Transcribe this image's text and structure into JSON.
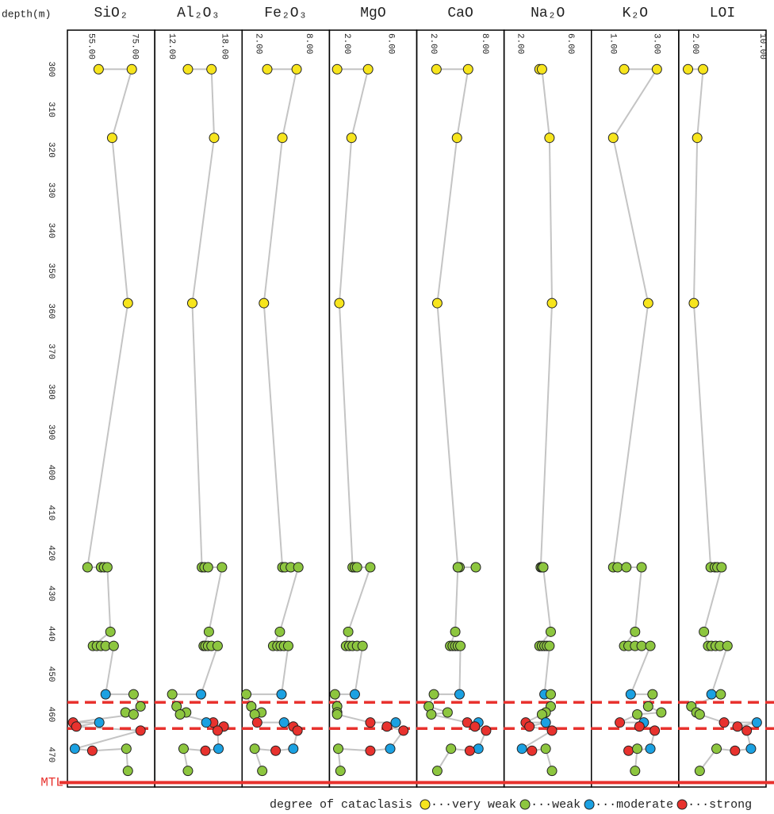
{
  "chart_data": {
    "type": "depth-profile",
    "ylabel": "depth(m)",
    "ylim": [
      290.3,
      478
    ],
    "y_inverted": true,
    "yticks": [
      300,
      310,
      320,
      330,
      340,
      350,
      360,
      370,
      380,
      390,
      400,
      410,
      420,
      430,
      440,
      450,
      460,
      470
    ],
    "depth": [
      300,
      300,
      317,
      358,
      423.5,
      423.5,
      423.5,
      423.5,
      439.5,
      443,
      443,
      443,
      443,
      443,
      455,
      455,
      458,
      459.5,
      460,
      462,
      462,
      463,
      464,
      468.5,
      469,
      468.5,
      474
    ],
    "cataclasis": [
      0,
      0,
      0,
      0,
      1,
      1,
      1,
      1,
      1,
      1,
      1,
      1,
      1,
      1,
      2,
      1,
      1,
      1,
      1,
      3,
      2,
      3,
      3,
      2,
      3,
      1,
      1
    ],
    "legend_title": "degree of cataclasis",
    "classes": [
      {
        "name": "···very weak",
        "color": "#f7e51d"
      },
      {
        "name": "···weak",
        "color": "#8dc63f"
      },
      {
        "name": "···moderate",
        "color": "#1ba1e2"
      },
      {
        "name": "···strong",
        "color": "#e8322e"
      }
    ],
    "line_color": "#c4c4c4",
    "boundary_color": "#e8322e",
    "boundaries": [
      457,
      463.5
    ],
    "mtl_label": "MTL",
    "mtl_depth": 476.9,
    "panels": [
      {
        "title": "SiO₂",
        "xlim": [
          44,
          84
        ],
        "xticks": [
          {
            "value": 55,
            "label": "55.00"
          },
          {
            "value": 75,
            "label": "75.00"
          }
        ],
        "values": [
          58.3,
          73.5,
          64.5,
          71.7,
          53.2,
          59.4,
          60.8,
          62.3,
          63.7,
          55.7,
          57.5,
          59.4,
          61.5,
          65.2,
          61.5,
          74.3,
          77.5,
          70.6,
          74.3,
          46.6,
          58.6,
          48.1,
          77.5,
          47.4,
          55.4,
          71,
          71.7
        ]
      },
      {
        "title": "Al₂O₃",
        "xlim": [
          10,
          20
        ],
        "xticks": [
          {
            "value": 12,
            "label": "12.00"
          },
          {
            "value": 18,
            "label": "18.00"
          }
        ],
        "values": [
          13.8,
          16.5,
          16.8,
          14.3,
          15.4,
          15.7,
          16.1,
          17.7,
          16.2,
          15.6,
          15.8,
          16.1,
          16.5,
          17.2,
          15.3,
          12,
          12.5,
          13.6,
          12.9,
          16.7,
          15.9,
          17.9,
          17.2,
          17.3,
          15.8,
          13.3,
          13.8
        ]
      },
      {
        "title": "Fe₂O₃",
        "xlim": [
          0,
          10.4
        ],
        "xticks": [
          {
            "value": 2,
            "label": "2.00"
          },
          {
            "value": 8,
            "label": "8.00"
          }
        ],
        "values": [
          3.0,
          6.5,
          4.8,
          2.6,
          4.8,
          5.1,
          5.8,
          6.7,
          4.5,
          3.7,
          4.2,
          4.6,
          5.0,
          5.5,
          4.7,
          0.5,
          1.1,
          2.3,
          1.5,
          1.8,
          5.0,
          6.1,
          6.6,
          6.1,
          4.0,
          1.5,
          2.4
        ]
      },
      {
        "title": "MgO",
        "xlim": [
          0.4,
          8.3
        ],
        "xticks": [
          {
            "value": 2,
            "label": "2.00"
          },
          {
            "value": 6,
            "label": "6.00"
          }
        ],
        "values": [
          1.1,
          3.9,
          2.4,
          1.3,
          2.5,
          2.7,
          2.9,
          4.1,
          2.1,
          1.9,
          2.2,
          2.5,
          2.9,
          3.4,
          2.7,
          0.9,
          1.1,
          1.1,
          1.1,
          4.1,
          6.4,
          5.6,
          7.1,
          5.9,
          4.1,
          1.2,
          1.4
        ]
      },
      {
        "title": "CaO",
        "xlim": [
          0,
          10.2
        ],
        "xticks": [
          {
            "value": 2,
            "label": "2.00"
          },
          {
            "value": 8,
            "label": "8.00"
          }
        ],
        "values": [
          2.3,
          6.0,
          4.7,
          2.4,
          4.8,
          5.0,
          6.9,
          4.8,
          4.5,
          3.9,
          4.2,
          4.5,
          4.8,
          5.1,
          5.0,
          2.0,
          1.4,
          3.6,
          1.7,
          5.9,
          7.2,
          6.8,
          8.1,
          7.2,
          6.2,
          4.0,
          2.4
        ]
      },
      {
        "title": "Na₂O",
        "xlim": [
          0.67,
          7.65
        ],
        "xticks": [
          {
            "value": 2,
            "label": "2.00"
          },
          {
            "value": 6,
            "label": "6.00"
          }
        ],
        "values": [
          3.5,
          3.7,
          4.3,
          4.5,
          3.6,
          3.7,
          3.8,
          3.8,
          4.4,
          3.5,
          3.7,
          3.9,
          4.1,
          4.3,
          3.9,
          4.4,
          4.4,
          4.0,
          3.7,
          2.4,
          4.0,
          2.7,
          4.5,
          2.1,
          2.9,
          4.0,
          4.5
        ]
      },
      {
        "title": "K₂O",
        "xlim": [
          0,
          4
        ],
        "xticks": [
          {
            "value": 1,
            "label": "1.00"
          },
          {
            "value": 3,
            "label": "3.00"
          }
        ],
        "values": [
          1.5,
          3.0,
          1.0,
          2.6,
          1.0,
          1.2,
          1.6,
          2.3,
          2.0,
          1.5,
          1.7,
          2.0,
          2.3,
          2.7,
          1.8,
          2.8,
          2.6,
          3.2,
          2.1,
          1.3,
          2.4,
          2.2,
          2.9,
          2.7,
          1.7,
          2.1,
          2.0
        ]
      },
      {
        "title": "LOI",
        "xlim": [
          0,
          10.4
        ],
        "xticks": [
          {
            "value": 2,
            "label": "2.00"
          },
          {
            "value": 10,
            "label": "10.00"
          }
        ],
        "values": [
          1.1,
          2.9,
          2.2,
          1.8,
          3.8,
          4.3,
          4.6,
          5.1,
          3.0,
          3.5,
          3.9,
          4.4,
          4.9,
          5.8,
          3.9,
          5.0,
          1.5,
          2.1,
          2.5,
          5.4,
          9.3,
          7.0,
          8.1,
          8.6,
          6.7,
          4.5,
          2.5
        ]
      }
    ]
  }
}
